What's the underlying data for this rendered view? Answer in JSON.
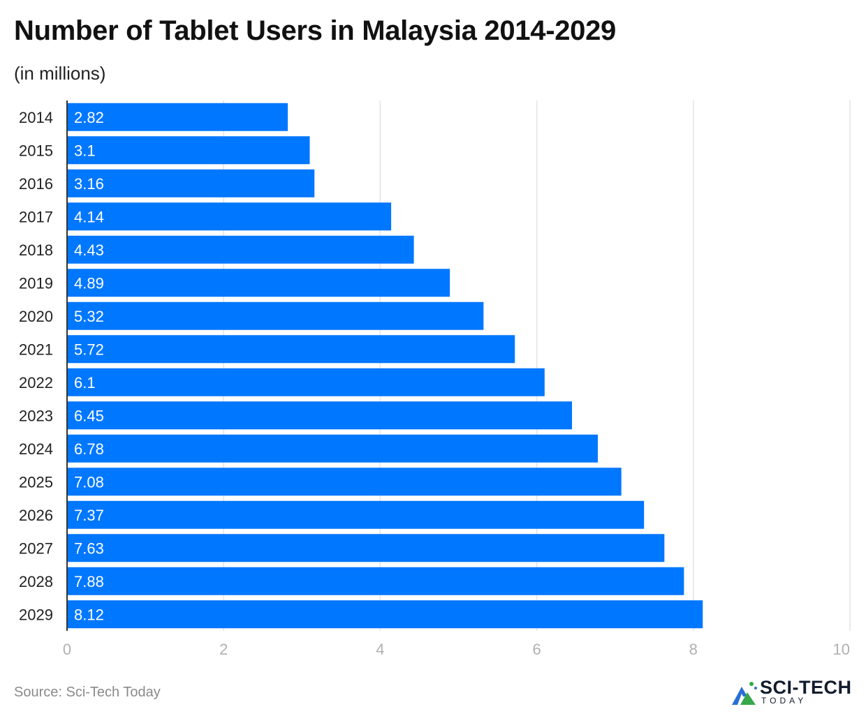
{
  "chart_data": {
    "type": "bar",
    "orientation": "horizontal",
    "title": "Number of Tablet Users in Malaysia 2014-2029",
    "subtitle": "(in millions)",
    "categories": [
      "2014",
      "2015",
      "2016",
      "2017",
      "2018",
      "2019",
      "2020",
      "2021",
      "2022",
      "2023",
      "2024",
      "2025",
      "2026",
      "2027",
      "2028",
      "2029"
    ],
    "values": [
      2.82,
      3.1,
      3.16,
      4.14,
      4.43,
      4.89,
      5.32,
      5.72,
      6.1,
      6.45,
      6.78,
      7.08,
      7.37,
      7.63,
      7.88,
      8.12
    ],
    "value_labels": [
      "2.82",
      "3.1",
      "3.16",
      "4.14",
      "4.43",
      "4.89",
      "5.32",
      "5.72",
      "6.1",
      "6.45",
      "6.78",
      "7.08",
      "7.37",
      "7.63",
      "7.88",
      "8.12"
    ],
    "xlim": [
      0,
      10
    ],
    "xticks": [
      "0",
      "2",
      "4",
      "6",
      "8",
      "10"
    ],
    "xtick_values": [
      0,
      2,
      4,
      6,
      8,
      10
    ],
    "xlabel": "",
    "ylabel": "",
    "grid": true,
    "bar_color": "#0077ff",
    "grid_color": "#e3e3e3",
    "tick_color": "#b0b0b0"
  },
  "footer": {
    "source": "Source: Sci-Tech Today",
    "logo_text": "SCI-TECH",
    "logo_subtext": "TODAY"
  }
}
